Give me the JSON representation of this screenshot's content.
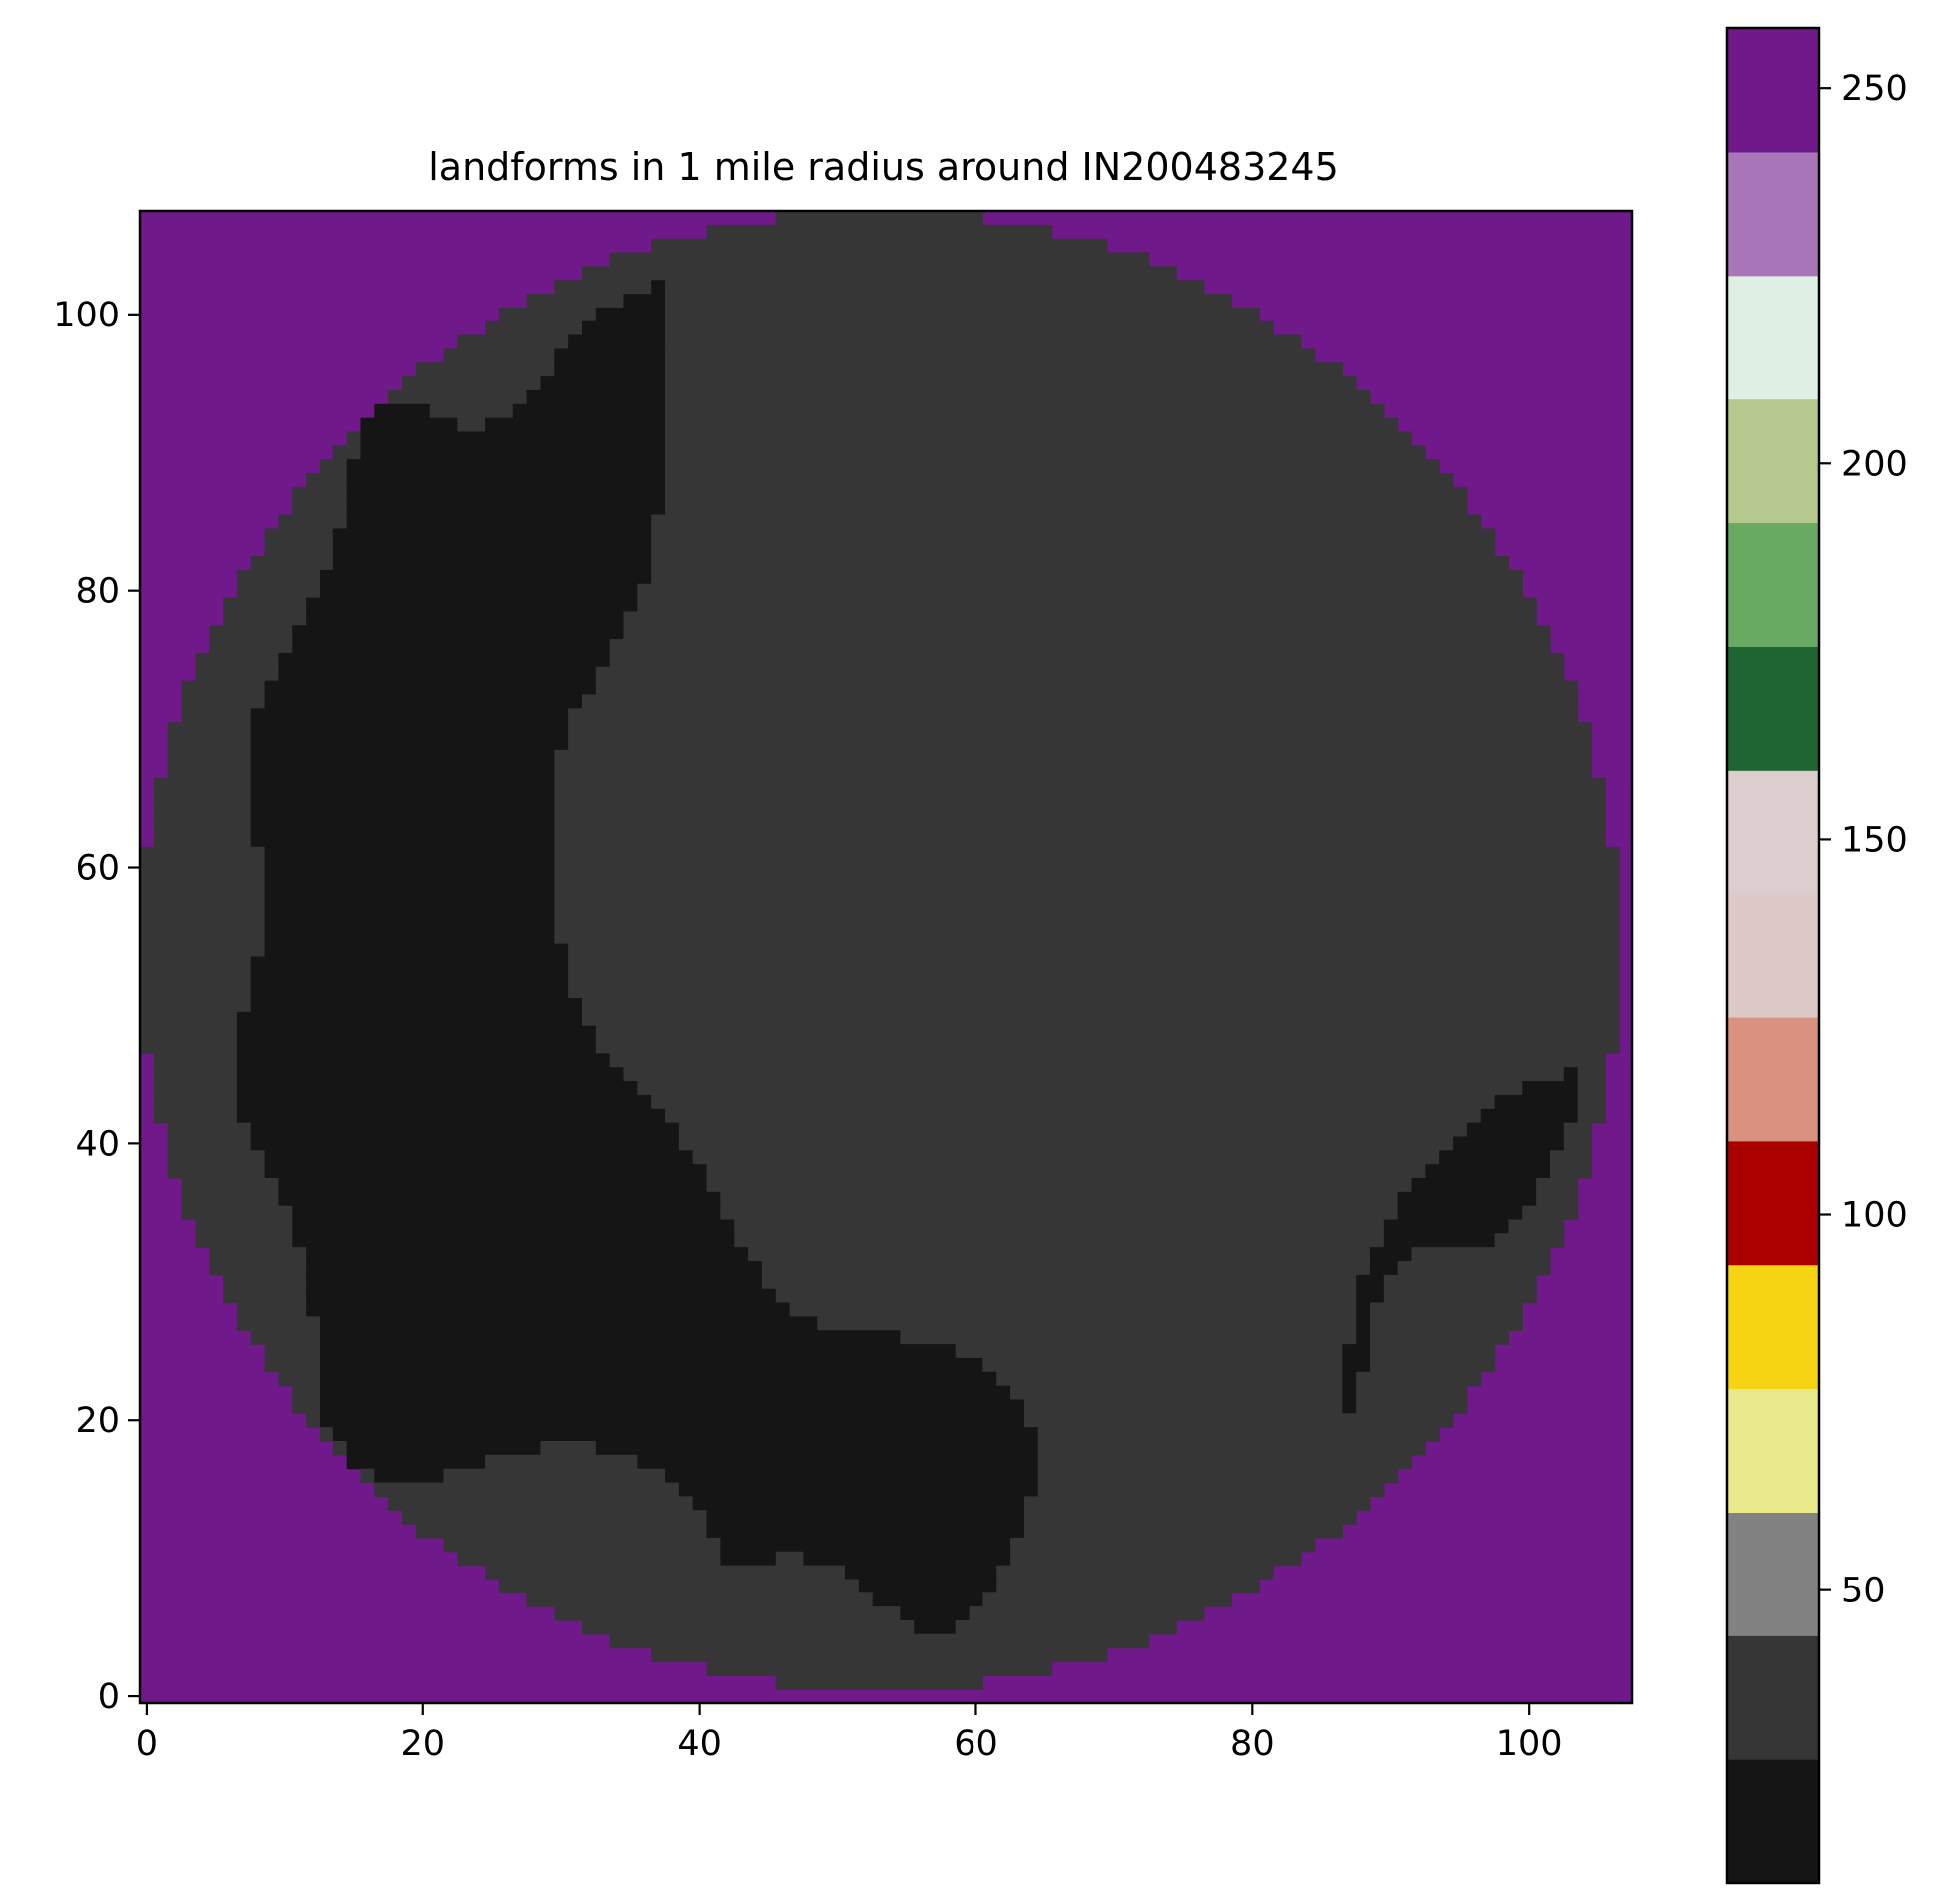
{
  "chart_data": {
    "type": "heatmap",
    "title": "landforms in 1 mile radius around IN200483245",
    "xlabel": "",
    "ylabel": "",
    "grid": false,
    "legend": "colorbar-right",
    "xlim": [
      -0.5,
      107.5
    ],
    "ylim": [
      107.5,
      -0.5
    ],
    "x_ticks": [
      0,
      20,
      40,
      60,
      80,
      100
    ],
    "y_ticks": [
      0,
      20,
      40,
      60,
      80,
      100
    ],
    "x_tick_labels": [
      "0",
      "20",
      "40",
      "60",
      "80",
      "100"
    ],
    "y_tick_labels": [
      "0",
      "20",
      "40",
      "60",
      "80",
      "100"
    ],
    "colorbar": {
      "range": [
        11,
        258
      ],
      "ticks": [
        50,
        100,
        150,
        200,
        250
      ],
      "tick_labels": [
        "50",
        "100",
        "150",
        "200",
        "250"
      ],
      "bands": [
        {
          "color": "#151515"
        },
        {
          "color": "#363636"
        },
        {
          "color": "#828282"
        },
        {
          "color": "#eaea8c"
        },
        {
          "color": "#f6d414"
        },
        {
          "color": "#aa0000"
        },
        {
          "color": "#d99280"
        },
        {
          "color": "#dec9c9"
        },
        {
          "color": "#dccece"
        },
        {
          "color": "#1e6532"
        },
        {
          "color": "#68aa62"
        },
        {
          "color": "#b5c98e"
        },
        {
          "color": "#e0efe4"
        },
        {
          "color": "#a977b9"
        },
        {
          "color": "#6f198a"
        }
      ]
    },
    "grid_size": [
      108,
      108
    ],
    "classes": {
      "outside": {
        "value": 255,
        "color": "#6f198a"
      },
      "ridge": {
        "value": 21,
        "color": "#151515"
      },
      "slope": {
        "value": 31,
        "color": "#363636"
      }
    },
    "circle": {
      "center": [
        53.5,
        53.5
      ],
      "radius": 53.5
    },
    "cells": "The 108x108 pixel grid inside the circle is a patchwork of value 21 (near-black) and value 31 (dark gray) regions; outside the circle all cells are 255 (purple)."
  }
}
